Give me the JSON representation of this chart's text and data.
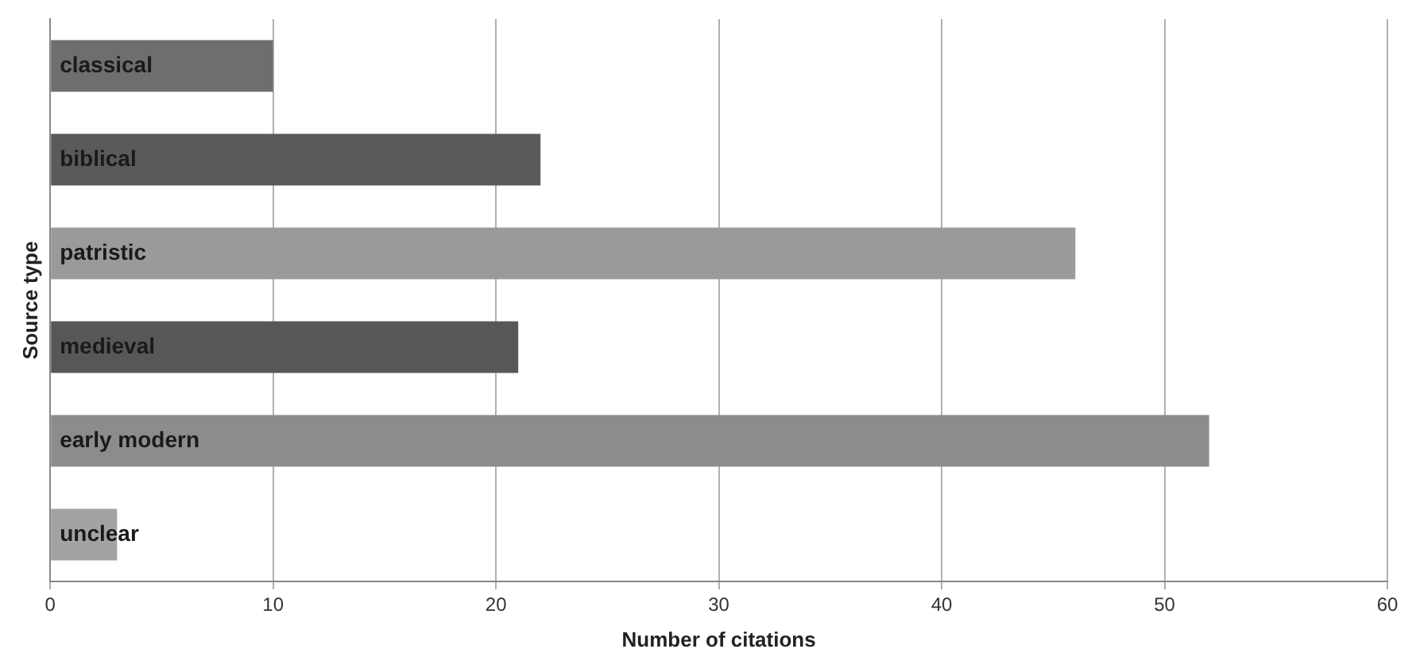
{
  "chart_data": {
    "type": "bar",
    "orientation": "horizontal",
    "xlabel": "Number of citations",
    "ylabel": "Source type",
    "categories": [
      "classical",
      "biblical",
      "patristic",
      "medieval",
      "early modern",
      "unclear"
    ],
    "values": [
      10,
      22,
      46,
      21,
      52,
      3
    ],
    "colors": [
      "#6e6e6e",
      "#5a5a5a",
      "#9a9a9a",
      "#575757",
      "#8c8c8c",
      "#a3a3a3"
    ],
    "xlim": [
      0,
      60
    ],
    "xticks": [
      0,
      10,
      20,
      30,
      40,
      50,
      60
    ],
    "grid": "x",
    "legend": false
  }
}
